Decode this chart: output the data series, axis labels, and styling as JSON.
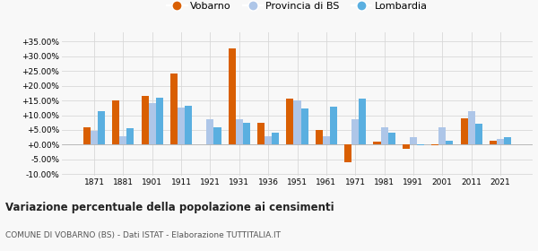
{
  "years": [
    1871,
    1881,
    1901,
    1911,
    1921,
    1931,
    1936,
    1951,
    1961,
    1971,
    1981,
    1991,
    2001,
    2011,
    2021
  ],
  "vobarno": [
    5.8,
    15.0,
    16.5,
    24.0,
    0.2,
    32.5,
    7.5,
    15.7,
    5.0,
    -6.0,
    1.0,
    -1.5,
    -0.3,
    9.0,
    1.5
  ],
  "provincia_bs": [
    4.8,
    2.8,
    14.0,
    12.5,
    8.5,
    8.5,
    3.0,
    15.0,
    2.8,
    8.5,
    6.0,
    2.5,
    6.0,
    11.5,
    2.0
  ],
  "lombardia": [
    11.5,
    5.5,
    15.8,
    13.2,
    6.0,
    7.5,
    4.2,
    12.2,
    13.0,
    15.5,
    4.0,
    -0.2,
    1.5,
    7.0,
    2.5
  ],
  "vobarno_color": "#d95f02",
  "provincia_color": "#aec6e8",
  "lombardia_color": "#5aafe0",
  "title": "Variazione percentuale della popolazione ai censimenti",
  "subtitle": "COMUNE DI VOBARNO (BS) - Dati ISTAT - Elaborazione TUTTITALIA.IT",
  "ylim": [
    -10.5,
    38.0
  ],
  "yticks": [
    -10.0,
    -5.0,
    0.0,
    5.0,
    10.0,
    15.0,
    20.0,
    25.0,
    30.0,
    35.0
  ],
  "bar_width": 0.25,
  "background_color": "#f8f8f8",
  "grid_color": "#d8d8d8"
}
